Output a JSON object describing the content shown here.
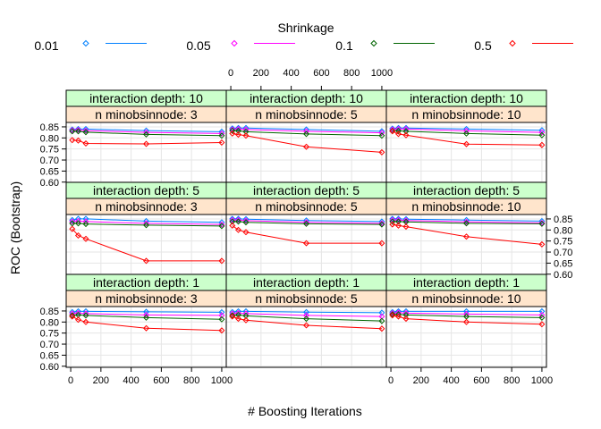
{
  "chart_data": {
    "type": "line",
    "legend": {
      "title": "Shrinkage",
      "placement": "top",
      "entries": [
        {
          "label": "0.01",
          "color": "#0080ff"
        },
        {
          "label": "0.05",
          "color": "#ff00ff"
        },
        {
          "label": "0.1",
          "color": "#006400"
        },
        {
          "label": "0.5",
          "color": "#ff0000"
        }
      ]
    },
    "xlabel": "# Boosting Iterations",
    "ylabel": "ROC (Bootstrap)",
    "xlim": [
      -30,
      1030
    ],
    "ylim": [
      0.595,
      0.87
    ],
    "x_ticks": [
      0,
      200,
      400,
      600,
      800,
      1000
    ],
    "x_tick_labels": [
      "0",
      "200",
      "400",
      "600",
      "800",
      "1000"
    ],
    "y_ticks": [
      0.6,
      0.65,
      0.7,
      0.75,
      0.8,
      0.85
    ],
    "y_tick_labels": [
      "0.60",
      "0.65",
      "0.70",
      "0.75",
      "0.80",
      "0.85"
    ],
    "grid": true,
    "x": [
      10,
      50,
      100,
      500,
      1000
    ],
    "panels": [
      {
        "strip_top": "interaction depth: 10",
        "strip_bottom": "n minobsinnode:  3",
        "series": [
          {
            "values": [
              0.838,
              0.84,
              0.84,
              0.833,
              0.828
            ]
          },
          {
            "values": [
              0.835,
              0.836,
              0.833,
              0.825,
              0.82
            ]
          },
          {
            "values": [
              0.83,
              0.83,
              0.826,
              0.816,
              0.81
            ]
          },
          {
            "values": [
              0.79,
              0.788,
              0.775,
              0.773,
              0.779
            ]
          }
        ]
      },
      {
        "strip_top": "interaction depth: 10",
        "strip_bottom": "n minobsinnode:  5",
        "series": [
          {
            "values": [
              0.843,
              0.845,
              0.845,
              0.838,
              0.83
            ]
          },
          {
            "values": [
              0.838,
              0.84,
              0.838,
              0.83,
              0.823
            ]
          },
          {
            "values": [
              0.833,
              0.832,
              0.828,
              0.818,
              0.81
            ]
          },
          {
            "values": [
              0.82,
              0.815,
              0.81,
              0.76,
              0.735
            ]
          }
        ]
      },
      {
        "strip_top": "interaction depth: 10",
        "strip_bottom": "n minobsinnode: 10",
        "series": [
          {
            "values": [
              0.842,
              0.845,
              0.845,
              0.84,
              0.835
            ]
          },
          {
            "values": [
              0.838,
              0.84,
              0.84,
              0.832,
              0.825
            ]
          },
          {
            "values": [
              0.832,
              0.832,
              0.83,
              0.82,
              0.812
            ]
          },
          {
            "values": [
              0.83,
              0.818,
              0.812,
              0.772,
              0.768
            ]
          }
        ]
      },
      {
        "strip_top": "interaction depth:  5",
        "strip_bottom": "n minobsinnode:  3",
        "series": [
          {
            "values": [
              0.845,
              0.85,
              0.85,
              0.84,
              0.835
            ]
          },
          {
            "values": [
              0.838,
              0.84,
              0.838,
              0.83,
              0.825
            ]
          },
          {
            "values": [
              0.83,
              0.83,
              0.827,
              0.822,
              0.818
            ]
          },
          {
            "values": [
              0.805,
              0.775,
              0.76,
              0.66,
              0.66
            ]
          }
        ]
      },
      {
        "strip_top": "interaction depth:  5",
        "strip_bottom": "n minobsinnode:  5",
        "series": [
          {
            "values": [
              0.85,
              0.85,
              0.849,
              0.843,
              0.838
            ]
          },
          {
            "values": [
              0.845,
              0.845,
              0.842,
              0.835,
              0.83
            ]
          },
          {
            "values": [
              0.838,
              0.838,
              0.835,
              0.828,
              0.825
            ]
          },
          {
            "values": [
              0.82,
              0.8,
              0.79,
              0.74,
              0.74
            ]
          }
        ]
      },
      {
        "strip_top": "interaction depth:  5",
        "strip_bottom": "n minobsinnode: 10",
        "series": [
          {
            "values": [
              0.85,
              0.85,
              0.849,
              0.845,
              0.84
            ]
          },
          {
            "values": [
              0.845,
              0.845,
              0.843,
              0.837,
              0.832
            ]
          },
          {
            "values": [
              0.838,
              0.838,
              0.837,
              0.83,
              0.828
            ]
          },
          {
            "values": [
              0.825,
              0.82,
              0.815,
              0.77,
              0.735
            ]
          }
        ]
      },
      {
        "strip_top": "interaction depth:  1",
        "strip_bottom": "n minobsinnode:  3",
        "series": [
          {
            "values": [
              0.845,
              0.848,
              0.848,
              0.846,
              0.844
            ]
          },
          {
            "values": [
              0.838,
              0.84,
              0.838,
              0.832,
              0.83
            ]
          },
          {
            "values": [
              0.83,
              0.832,
              0.83,
              0.82,
              0.812
            ]
          },
          {
            "values": [
              0.825,
              0.81,
              0.8,
              0.772,
              0.762
            ]
          }
        ]
      },
      {
        "strip_top": "interaction depth:  1",
        "strip_bottom": "n minobsinnode:  5",
        "series": [
          {
            "values": [
              0.845,
              0.848,
              0.848,
              0.845,
              0.842
            ]
          },
          {
            "values": [
              0.838,
              0.84,
              0.838,
              0.83,
              0.825
            ]
          },
          {
            "values": [
              0.83,
              0.832,
              0.828,
              0.815,
              0.805
            ]
          },
          {
            "values": [
              0.825,
              0.815,
              0.808,
              0.785,
              0.77
            ]
          }
        ]
      },
      {
        "strip_top": "interaction depth:  1",
        "strip_bottom": "n minobsinnode: 10",
        "series": [
          {
            "values": [
              0.845,
              0.848,
              0.848,
              0.848,
              0.848
            ]
          },
          {
            "values": [
              0.84,
              0.842,
              0.84,
              0.836,
              0.832
            ]
          },
          {
            "values": [
              0.835,
              0.835,
              0.832,
              0.825,
              0.82
            ]
          },
          {
            "values": [
              0.83,
              0.825,
              0.815,
              0.8,
              0.79
            ]
          }
        ]
      }
    ]
  }
}
